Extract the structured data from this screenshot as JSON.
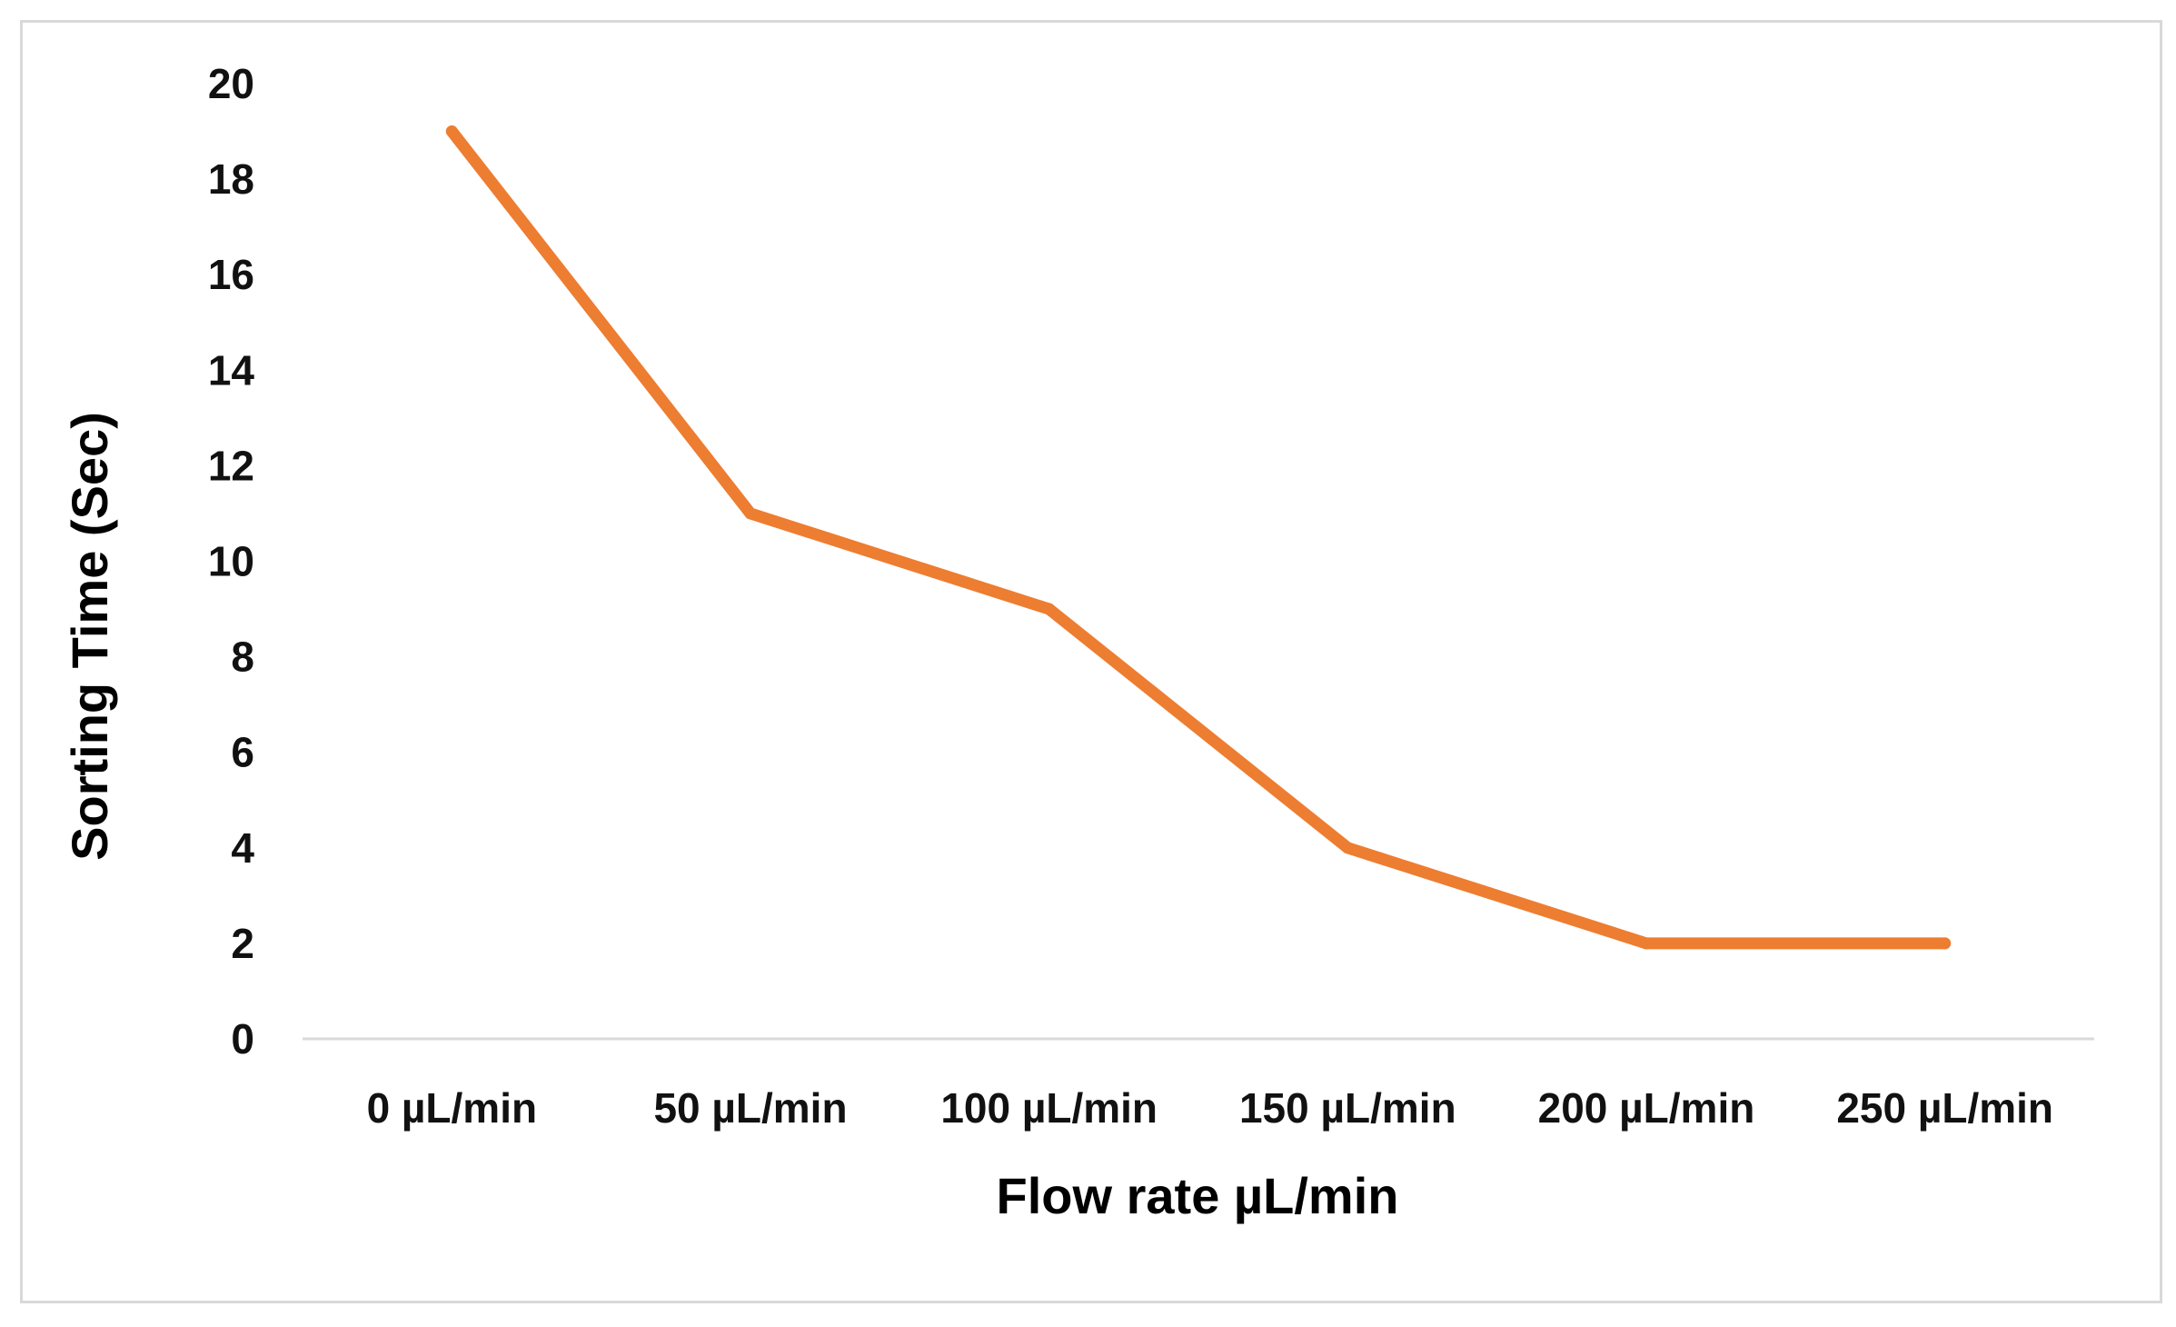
{
  "chart_data": {
    "type": "line",
    "title": "",
    "xlabel": "Flow rate µL/min",
    "ylabel": "Sorting Time (Sec)",
    "categories": [
      "0 µL/min",
      "50 µL/min",
      "100 µL/min",
      "150 µL/min",
      "200 µL/min",
      "250 µL/min"
    ],
    "series": [
      {
        "name": "Sorting Time",
        "color": "#ED7D31",
        "values": [
          19,
          11,
          9,
          4,
          2,
          2
        ]
      }
    ],
    "ylim": [
      0,
      20
    ],
    "yticks": [
      0,
      2,
      4,
      6,
      8,
      10,
      12,
      14,
      16,
      18,
      20
    ],
    "grid": false,
    "legend": "none",
    "axis_color": "#d9d9d9"
  }
}
